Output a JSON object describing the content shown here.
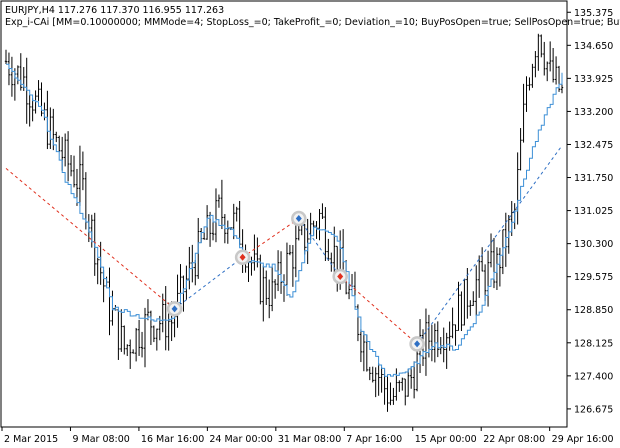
{
  "header": {
    "symbol_line": "EURJPY,H4  117.276 117.370 116.955 117.263",
    "expert_line": "Exp_i-CAi [MM=0.10000000; MMMode=4; StopLoss_=0; TakeProfit_=0; Deviation_=10; BuyPosOpen=true; SellPosOpen=true; BuyP"
  },
  "colors": {
    "candles": "#000000",
    "indicator": "#3c8fd6",
    "buy_line": "#2e6fc4",
    "sell_line": "#e0301e",
    "marker_ring": "#c8c8c8"
  },
  "chart_data": {
    "type": "line",
    "title": "",
    "xlabel": "",
    "ylabel": "",
    "ylim": [
      126.3,
      135.6
    ],
    "y_ticks": [
      "135.375",
      "134.650",
      "133.925",
      "133.200",
      "132.475",
      "131.750",
      "131.025",
      "130.300",
      "129.575",
      "128.850",
      "128.125",
      "127.400",
      "126.675"
    ],
    "x_ticks": [
      "2 Mar 2015",
      "9 Mar 08:00",
      "16 Mar 16:00",
      "24 Mar 00:00",
      "31 Mar 08:00",
      "7 Apr 16:00",
      "15 Apr 00:00",
      "22 Apr 08:00",
      "29 Apr 16:00"
    ],
    "price_waypoints": [
      {
        "bar": 0,
        "close": 134.3
      },
      {
        "bar": 6,
        "close": 133.9
      },
      {
        "bar": 16,
        "close": 132.6
      },
      {
        "bar": 26,
        "close": 131.5
      },
      {
        "bar": 34,
        "close": 129.1
      },
      {
        "bar": 40,
        "close": 128.0
      },
      {
        "bar": 48,
        "close": 128.6
      },
      {
        "bar": 56,
        "close": 128.6
      },
      {
        "bar": 64,
        "close": 130.0
      },
      {
        "bar": 72,
        "close": 131.0
      },
      {
        "bar": 78,
        "close": 130.7
      },
      {
        "bar": 86,
        "close": 129.4
      },
      {
        "bar": 90,
        "close": 129.2
      },
      {
        "bar": 96,
        "close": 130.0
      },
      {
        "bar": 106,
        "close": 130.9
      },
      {
        "bar": 114,
        "close": 129.6
      },
      {
        "bar": 122,
        "close": 127.9
      },
      {
        "bar": 130,
        "close": 126.9
      },
      {
        "bar": 136,
        "close": 127.2
      },
      {
        "bar": 142,
        "close": 128.2
      },
      {
        "bar": 150,
        "close": 128.5
      },
      {
        "bar": 158,
        "close": 129.4
      },
      {
        "bar": 166,
        "close": 129.8
      },
      {
        "bar": 172,
        "close": 131.0
      },
      {
        "bar": 176,
        "close": 133.8
      },
      {
        "bar": 180,
        "close": 135.0
      },
      {
        "bar": 184,
        "close": 134.0
      },
      {
        "bar": 188,
        "close": 133.6
      }
    ],
    "indicator_waypoints": [
      {
        "bar": 0,
        "value": 134.2
      },
      {
        "bar": 12,
        "value": 133.2
      },
      {
        "bar": 20,
        "value": 131.7
      },
      {
        "bar": 28,
        "value": 130.6
      },
      {
        "bar": 36,
        "value": 128.9
      },
      {
        "bar": 50,
        "value": 128.6
      },
      {
        "bar": 56,
        "value": 128.7
      },
      {
        "bar": 62,
        "value": 129.7
      },
      {
        "bar": 68,
        "value": 130.9
      },
      {
        "bar": 76,
        "value": 130.6
      },
      {
        "bar": 82,
        "value": 129.9
      },
      {
        "bar": 90,
        "value": 129.8
      },
      {
        "bar": 96,
        "value": 129.1
      },
      {
        "bar": 104,
        "value": 130.7
      },
      {
        "bar": 112,
        "value": 130.4
      },
      {
        "bar": 120,
        "value": 128.4
      },
      {
        "bar": 128,
        "value": 127.4
      },
      {
        "bar": 136,
        "value": 127.5
      },
      {
        "bar": 144,
        "value": 128.1
      },
      {
        "bar": 152,
        "value": 128.0
      },
      {
        "bar": 160,
        "value": 128.8
      },
      {
        "bar": 170,
        "value": 130.6
      },
      {
        "bar": 178,
        "value": 132.4
      },
      {
        "bar": 184,
        "value": 133.4
      },
      {
        "bar": 188,
        "value": 134.0
      }
    ],
    "trade_lines": [
      {
        "kind": "sell",
        "from_bar": 0,
        "from_price": 131.95,
        "to_bar": 57,
        "to_price": 128.87
      },
      {
        "kind": "buy",
        "from_bar": 57,
        "from_price": 128.87,
        "to_bar": 80,
        "to_price": 130.0
      },
      {
        "kind": "sell",
        "from_bar": 80,
        "from_price": 130.0,
        "to_bar": 99,
        "to_price": 130.85
      },
      {
        "kind": "buy",
        "from_bar": 99,
        "from_price": 130.85,
        "to_bar": 113,
        "to_price": 129.58
      },
      {
        "kind": "sell",
        "from_bar": 113,
        "from_price": 129.58,
        "to_bar": 139,
        "to_price": 128.1
      },
      {
        "kind": "buy",
        "from_bar": 139,
        "from_price": 128.1,
        "to_bar": 188,
        "to_price": 132.45
      }
    ],
    "markers": [
      {
        "kind": "buy",
        "bar": 57,
        "price": 128.87
      },
      {
        "kind": "sell",
        "bar": 80,
        "price": 130.0
      },
      {
        "kind": "buy",
        "bar": 99,
        "price": 130.85
      },
      {
        "kind": "sell",
        "bar": 113,
        "price": 129.58
      },
      {
        "kind": "buy",
        "bar": 139,
        "price": 128.1
      }
    ]
  }
}
